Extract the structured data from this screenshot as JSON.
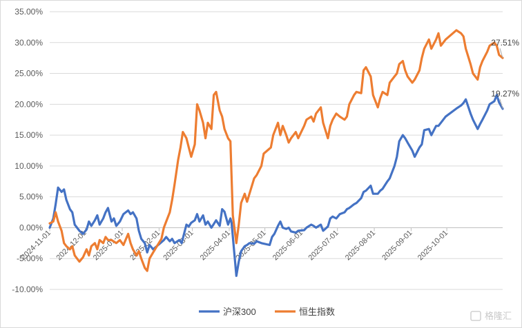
{
  "chart_data": {
    "type": "line",
    "title": "",
    "xlabel": "",
    "ylabel": "",
    "x_tick_labels": [
      "2024-11-01",
      "2024-12-01",
      "2025-01-01",
      "2025-02-01",
      "2025-03-01",
      "2025-04-01",
      "2025-05-01",
      "2025-06-01",
      "2025-07-01",
      "2025-08-01",
      "2025-09-01",
      "2025-10-01"
    ],
    "y_tick_labels": [
      "-10.00%",
      "-5.00%",
      "0.00%",
      "5.00%",
      "10.00%",
      "15.00%",
      "20.00%",
      "25.00%",
      "30.00%",
      "35.00%"
    ],
    "ylim": [
      -10,
      35
    ],
    "y_unit": "%",
    "grid": "horizontal",
    "legend_position": "bottom",
    "series": [
      {
        "name": "沪深300",
        "color": "#4472C4",
        "end_label": "19.27%",
        "points": [
          [
            "2024-11-01",
            0
          ],
          [
            "2024-11-04",
            1.5
          ],
          [
            "2024-11-06",
            3.8
          ],
          [
            "2024-11-08",
            6.5
          ],
          [
            "2024-11-11",
            5.8
          ],
          [
            "2024-11-13",
            6.2
          ],
          [
            "2024-11-15",
            4.5
          ],
          [
            "2024-11-18",
            3.0
          ],
          [
            "2024-11-20",
            2.5
          ],
          [
            "2024-11-22",
            0.5
          ],
          [
            "2024-11-26",
            -0.5
          ],
          [
            "2024-11-29",
            -1.0
          ],
          [
            "2024-12-02",
            -0.3
          ],
          [
            "2024-12-04",
            1.0
          ],
          [
            "2024-12-06",
            0.3
          ],
          [
            "2024-12-09",
            1.2
          ],
          [
            "2024-12-11",
            2.0
          ],
          [
            "2024-12-13",
            0.5
          ],
          [
            "2024-12-16",
            1.5
          ],
          [
            "2024-12-18",
            2.5
          ],
          [
            "2024-12-20",
            3.2
          ],
          [
            "2024-12-23",
            1.0
          ],
          [
            "2024-12-25",
            1.5
          ],
          [
            "2024-12-27",
            0.3
          ],
          [
            "2024-12-30",
            1.0
          ],
          [
            "2025-01-02",
            2.2
          ],
          [
            "2025-01-06",
            2.8
          ],
          [
            "2025-01-08",
            2.2
          ],
          [
            "2025-01-10",
            2.5
          ],
          [
            "2025-01-13",
            1.5
          ],
          [
            "2025-01-15",
            -0.5
          ],
          [
            "2025-01-17",
            -1.8
          ],
          [
            "2025-01-20",
            -2.5
          ],
          [
            "2025-01-22",
            -4.0
          ],
          [
            "2025-01-24",
            -2.8
          ],
          [
            "2025-01-27",
            -3.5
          ],
          [
            "2025-02-05",
            -2.0
          ],
          [
            "2025-02-07",
            -1.5
          ],
          [
            "2025-02-10",
            -2.2
          ],
          [
            "2025-02-12",
            -1.8
          ],
          [
            "2025-02-14",
            -2.5
          ],
          [
            "2025-02-18",
            -2.0
          ],
          [
            "2025-02-20",
            -2.5
          ],
          [
            "2025-02-24",
            0.5
          ],
          [
            "2025-02-26",
            0.2
          ],
          [
            "2025-02-28",
            0.8
          ],
          [
            "2025-03-03",
            1.2
          ],
          [
            "2025-03-05",
            2.2
          ],
          [
            "2025-03-07",
            1.0
          ],
          [
            "2025-03-10",
            2.0
          ],
          [
            "2025-03-12",
            0.5
          ],
          [
            "2025-03-14",
            1.0
          ],
          [
            "2025-03-17",
            0.0
          ],
          [
            "2025-03-19",
            0.6
          ],
          [
            "2025-03-21",
            1.2
          ],
          [
            "2025-03-24",
            0.3
          ],
          [
            "2025-03-26",
            3.0
          ],
          [
            "2025-03-28",
            2.6
          ],
          [
            "2025-03-31",
            0.5
          ],
          [
            "2025-04-02",
            1.5
          ],
          [
            "2025-04-03",
            0.8
          ],
          [
            "2025-04-07",
            -7.8
          ],
          [
            "2025-04-09",
            -5.5
          ],
          [
            "2025-04-11",
            -3.8
          ],
          [
            "2025-04-14",
            -3.0
          ],
          [
            "2025-04-16",
            -2.8
          ],
          [
            "2025-04-18",
            -2.5
          ],
          [
            "2025-04-22",
            -2.6
          ],
          [
            "2025-04-24",
            -2.2
          ],
          [
            "2025-04-28",
            -2.5
          ],
          [
            "2025-05-05",
            -2.8
          ],
          [
            "2025-05-07",
            -1.5
          ],
          [
            "2025-05-09",
            -1.0
          ],
          [
            "2025-05-12",
            0.3
          ],
          [
            "2025-05-14",
            1.0
          ],
          [
            "2025-05-16",
            0.0
          ],
          [
            "2025-05-19",
            -0.2
          ],
          [
            "2025-05-21",
            0.0
          ],
          [
            "2025-05-23",
            -0.6
          ],
          [
            "2025-05-27",
            -0.8
          ],
          [
            "2025-05-29",
            -0.5
          ],
          [
            "2025-06-03",
            -0.4
          ],
          [
            "2025-06-05",
            0.0
          ],
          [
            "2025-06-09",
            0.5
          ],
          [
            "2025-06-11",
            0.3
          ],
          [
            "2025-06-13",
            0.0
          ],
          [
            "2025-06-17",
            0.5
          ],
          [
            "2025-06-19",
            -0.5
          ],
          [
            "2025-06-23",
            0.2
          ],
          [
            "2025-06-25",
            1.5
          ],
          [
            "2025-06-27",
            1.8
          ],
          [
            "2025-06-30",
            1.5
          ],
          [
            "2025-07-03",
            2.2
          ],
          [
            "2025-07-07",
            2.5
          ],
          [
            "2025-07-09",
            3.0
          ],
          [
            "2025-07-11",
            3.2
          ],
          [
            "2025-07-15",
            3.8
          ],
          [
            "2025-07-17",
            4.0
          ],
          [
            "2025-07-21",
            4.8
          ],
          [
            "2025-07-23",
            5.8
          ],
          [
            "2025-07-25",
            6.0
          ],
          [
            "2025-07-29",
            6.8
          ],
          [
            "2025-07-31",
            5.5
          ],
          [
            "2025-08-04",
            5.5
          ],
          [
            "2025-08-06",
            6.0
          ],
          [
            "2025-08-08",
            6.3
          ],
          [
            "2025-08-12",
            7.5
          ],
          [
            "2025-08-14",
            8.0
          ],
          [
            "2025-08-18",
            10.0
          ],
          [
            "2025-08-20",
            11.5
          ],
          [
            "2025-08-22",
            14.0
          ],
          [
            "2025-08-25",
            15.0
          ],
          [
            "2025-08-27",
            14.5
          ],
          [
            "2025-08-29",
            13.8
          ],
          [
            "2025-09-02",
            12.5
          ],
          [
            "2025-09-04",
            11.5
          ],
          [
            "2025-09-08",
            13.0
          ],
          [
            "2025-09-10",
            13.5
          ],
          [
            "2025-09-12",
            15.8
          ],
          [
            "2025-09-16",
            16.0
          ],
          [
            "2025-09-18",
            15.0
          ],
          [
            "2025-09-22",
            16.5
          ],
          [
            "2025-09-24",
            16.5
          ],
          [
            "2025-09-26",
            17.0
          ],
          [
            "2025-09-30",
            18.0
          ],
          [
            "2025-10-09",
            19.3
          ],
          [
            "2025-10-13",
            19.8
          ],
          [
            "2025-10-15",
            20.2
          ],
          [
            "2025-10-17",
            20.8
          ],
          [
            "2025-10-21",
            18.5
          ],
          [
            "2025-10-23",
            17.5
          ],
          [
            "2025-10-27",
            16.0
          ],
          [
            "2025-10-29",
            16.8
          ],
          [
            "2025-10-31",
            17.5
          ],
          [
            "2025-11-04",
            19.0
          ],
          [
            "2025-11-06",
            20.0
          ],
          [
            "2025-11-10",
            20.5
          ],
          [
            "2025-11-12",
            21.5
          ],
          [
            "2025-11-14",
            20.3
          ],
          [
            "2025-11-17",
            19.27
          ]
        ]
      },
      {
        "name": "恒生指数",
        "color": "#ED7D31",
        "end_label": "27.51%",
        "points": [
          [
            "2024-11-01",
            0.7
          ],
          [
            "2024-11-04",
            1.0
          ],
          [
            "2024-11-06",
            2.5
          ],
          [
            "2024-11-08",
            1.0
          ],
          [
            "2024-11-11",
            -0.5
          ],
          [
            "2024-11-13",
            -2.5
          ],
          [
            "2024-11-15",
            -3.0
          ],
          [
            "2024-11-18",
            -3.5
          ],
          [
            "2024-11-20",
            -3.0
          ],
          [
            "2024-11-22",
            -4.5
          ],
          [
            "2024-11-26",
            -5.5
          ],
          [
            "2024-11-29",
            -4.8
          ],
          [
            "2024-12-02",
            -3.5
          ],
          [
            "2024-12-04",
            -4.5
          ],
          [
            "2024-12-06",
            -3.0
          ],
          [
            "2024-12-09",
            -2.5
          ],
          [
            "2024-12-11",
            -3.5
          ],
          [
            "2024-12-13",
            -2.0
          ],
          [
            "2024-12-16",
            -2.5
          ],
          [
            "2024-12-18",
            -1.5
          ],
          [
            "2024-12-20",
            -2.0
          ],
          [
            "2024-12-23",
            -2.0
          ],
          [
            "2024-12-27",
            -2.5
          ],
          [
            "2024-12-30",
            -2.0
          ],
          [
            "2025-01-02",
            -2.8
          ],
          [
            "2025-01-06",
            -1.0
          ],
          [
            "2025-01-08",
            -2.5
          ],
          [
            "2025-01-10",
            -3.5
          ],
          [
            "2025-01-13",
            -4.5
          ],
          [
            "2025-01-15",
            -3.8
          ],
          [
            "2025-01-17",
            -5.0
          ],
          [
            "2025-01-20",
            -6.5
          ],
          [
            "2025-01-22",
            -7.0
          ],
          [
            "2025-01-24",
            -5.0
          ],
          [
            "2025-01-27",
            -4.0
          ],
          [
            "2025-02-03",
            -1.8
          ],
          [
            "2025-02-05",
            0.0
          ],
          [
            "2025-02-07",
            1.0
          ],
          [
            "2025-02-10",
            2.5
          ],
          [
            "2025-02-12",
            4.5
          ],
          [
            "2025-02-14",
            7.0
          ],
          [
            "2025-02-17",
            11.0
          ],
          [
            "2025-02-19",
            13.0
          ],
          [
            "2025-02-21",
            15.5
          ],
          [
            "2025-02-24",
            14.5
          ],
          [
            "2025-02-26",
            13.0
          ],
          [
            "2025-02-28",
            11.5
          ],
          [
            "2025-03-03",
            13.5
          ],
          [
            "2025-03-05",
            20.0
          ],
          [
            "2025-03-07",
            19.0
          ],
          [
            "2025-03-10",
            17.0
          ],
          [
            "2025-03-12",
            14.5
          ],
          [
            "2025-03-14",
            17.0
          ],
          [
            "2025-03-17",
            16.0
          ],
          [
            "2025-03-19",
            21.5
          ],
          [
            "2025-03-21",
            22.0
          ],
          [
            "2025-03-24",
            19.0
          ],
          [
            "2025-03-26",
            18.0
          ],
          [
            "2025-03-28",
            16.0
          ],
          [
            "2025-03-31",
            14.5
          ],
          [
            "2025-04-02",
            14.0
          ],
          [
            "2025-04-04",
            2.0
          ],
          [
            "2025-04-07",
            -2.5
          ],
          [
            "2025-04-09",
            0.5
          ],
          [
            "2025-04-11",
            4.0
          ],
          [
            "2025-04-14",
            5.5
          ],
          [
            "2025-04-16",
            4.2
          ],
          [
            "2025-04-18",
            5.5
          ],
          [
            "2025-04-22",
            8.0
          ],
          [
            "2025-04-24",
            8.5
          ],
          [
            "2025-04-28",
            10.0
          ],
          [
            "2025-04-30",
            12.0
          ],
          [
            "2025-05-06",
            13.0
          ],
          [
            "2025-05-08",
            15.0
          ],
          [
            "2025-05-12",
            17.0
          ],
          [
            "2025-05-14",
            15.0
          ],
          [
            "2025-05-16",
            16.5
          ],
          [
            "2025-05-19",
            15.0
          ],
          [
            "2025-05-21",
            13.8
          ],
          [
            "2025-05-23",
            14.5
          ],
          [
            "2025-05-27",
            15.5
          ],
          [
            "2025-05-29",
            14.5
          ],
          [
            "2025-06-03",
            16.5
          ],
          [
            "2025-06-05",
            17.5
          ],
          [
            "2025-06-09",
            18.0
          ],
          [
            "2025-06-11",
            17.2
          ],
          [
            "2025-06-13",
            18.5
          ],
          [
            "2025-06-17",
            19.5
          ],
          [
            "2025-06-19",
            17.0
          ],
          [
            "2025-06-23",
            14.5
          ],
          [
            "2025-06-25",
            16.5
          ],
          [
            "2025-06-27",
            17.5
          ],
          [
            "2025-06-30",
            18.5
          ],
          [
            "2025-07-03",
            18.0
          ],
          [
            "2025-07-07",
            17.5
          ],
          [
            "2025-07-09",
            18.0
          ],
          [
            "2025-07-11",
            20.0
          ],
          [
            "2025-07-15",
            21.5
          ],
          [
            "2025-07-17",
            22.0
          ],
          [
            "2025-07-21",
            21.8
          ],
          [
            "2025-07-23",
            25.5
          ],
          [
            "2025-07-25",
            26.0
          ],
          [
            "2025-07-29",
            24.5
          ],
          [
            "2025-07-31",
            21.5
          ],
          [
            "2025-08-04",
            19.5
          ],
          [
            "2025-08-06",
            21.0
          ],
          [
            "2025-08-08",
            22.0
          ],
          [
            "2025-08-12",
            21.5
          ],
          [
            "2025-08-14",
            23.5
          ],
          [
            "2025-08-18",
            24.5
          ],
          [
            "2025-08-20",
            25.0
          ],
          [
            "2025-08-22",
            26.5
          ],
          [
            "2025-08-25",
            27.0
          ],
          [
            "2025-08-27",
            25.5
          ],
          [
            "2025-08-29",
            24.5
          ],
          [
            "2025-09-02",
            23.5
          ],
          [
            "2025-09-04",
            24.0
          ],
          [
            "2025-09-08",
            25.5
          ],
          [
            "2025-09-10",
            27.5
          ],
          [
            "2025-09-12",
            29.0
          ],
          [
            "2025-09-16",
            30.5
          ],
          [
            "2025-09-18",
            29.0
          ],
          [
            "2025-09-22",
            30.5
          ],
          [
            "2025-09-24",
            31.5
          ],
          [
            "2025-09-26",
            29.5
          ],
          [
            "2025-09-30",
            30.5
          ],
          [
            "2025-10-09",
            32.0
          ],
          [
            "2025-10-13",
            31.5
          ],
          [
            "2025-10-15",
            31.0
          ],
          [
            "2025-10-17",
            29.0
          ],
          [
            "2025-10-21",
            26.5
          ],
          [
            "2025-10-23",
            25.0
          ],
          [
            "2025-10-27",
            24.0
          ],
          [
            "2025-10-29",
            26.0
          ],
          [
            "2025-10-31",
            27.0
          ],
          [
            "2025-11-04",
            28.5
          ],
          [
            "2025-11-06",
            29.5
          ],
          [
            "2025-11-10",
            30.0
          ],
          [
            "2025-11-12",
            29.5
          ],
          [
            "2025-11-14",
            28.0
          ],
          [
            "2025-11-17",
            27.51
          ]
        ]
      }
    ]
  },
  "watermark": "格隆汇"
}
